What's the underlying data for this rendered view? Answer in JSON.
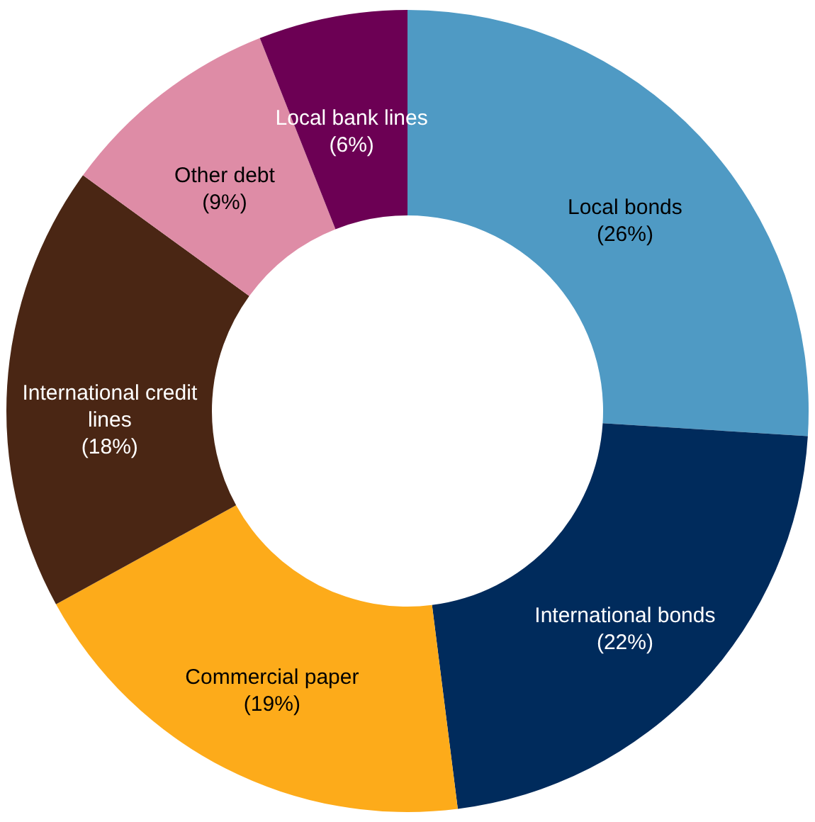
{
  "chart_data": {
    "type": "donut",
    "categories": [
      "Local bonds",
      "International bonds",
      "Commercial paper",
      "International credit lines",
      "Other debt",
      "Local bank lines"
    ],
    "values": [
      26,
      22,
      19,
      18,
      9,
      6
    ],
    "value_labels": [
      "(26%)",
      "(22%)",
      "(19%)",
      "(18%)",
      "(9%)",
      "(6%)"
    ],
    "colors": [
      "#4f9ac4",
      "#002b5c",
      "#fdab1a",
      "#4a2614",
      "#de8ca6",
      "#6c0054"
    ]
  }
}
